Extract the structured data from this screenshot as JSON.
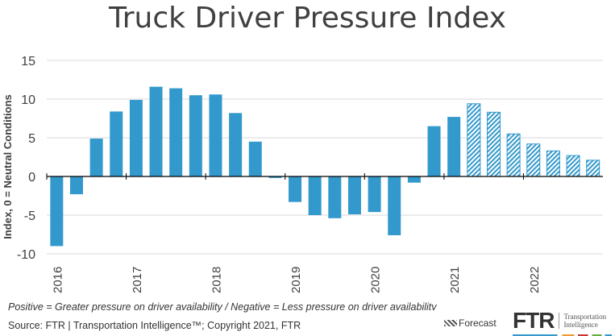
{
  "chart_data": {
    "type": "bar",
    "title": "Truck Driver Pressure Index",
    "ylabel": "Index, 0 = Neutral Conditions",
    "xlabel": "",
    "ylim": [
      -10,
      15
    ],
    "yticks": [
      15,
      10,
      5,
      0,
      -5,
      -10
    ],
    "grid": true,
    "x_tick_labels": [
      "2016",
      "2017",
      "2018",
      "2019",
      "2020",
      "2021",
      "2022"
    ],
    "categories": [
      "2016 Q1",
      "2016 Q2",
      "2016 Q3",
      "2016 Q4",
      "2017 Q1",
      "2017 Q2",
      "2017 Q3",
      "2017 Q4",
      "2018 Q1",
      "2018 Q2",
      "2018 Q3",
      "2018 Q4",
      "2019 Q1",
      "2019 Q2",
      "2019 Q3",
      "2019 Q4",
      "2020 Q1",
      "2020 Q2",
      "2020 Q3",
      "2020 Q4",
      "2021 Q1",
      "2021 Q2",
      "2021 Q3",
      "2021 Q4",
      "2022 Q1",
      "2022 Q2",
      "2022 Q3",
      "2022 Q4"
    ],
    "values": [
      -9.0,
      -2.3,
      4.9,
      8.4,
      9.9,
      11.6,
      11.4,
      10.5,
      10.6,
      8.2,
      4.5,
      -0.2,
      -3.3,
      -5.0,
      -5.4,
      -4.9,
      -4.6,
      -7.6,
      -0.8,
      6.5,
      7.7,
      9.4,
      8.3,
      5.5,
      4.2,
      3.3,
      2.7,
      2.1
    ],
    "forecast_start_index": 21,
    "bar_color": "#3399cc",
    "legend": {
      "forecast_label": "Forecast",
      "placement": "bottom-right"
    }
  },
  "footer": {
    "note": "Positive = Greater pressure on driver availability / Negative = Less pressure on driver availabilitv",
    "source": "Source: FTR | Transportation Intelligence™; Copyright 2021, FTR"
  },
  "logo": {
    "text": "FTR",
    "sub1": "Transportation",
    "sub2": "Intelligence"
  }
}
